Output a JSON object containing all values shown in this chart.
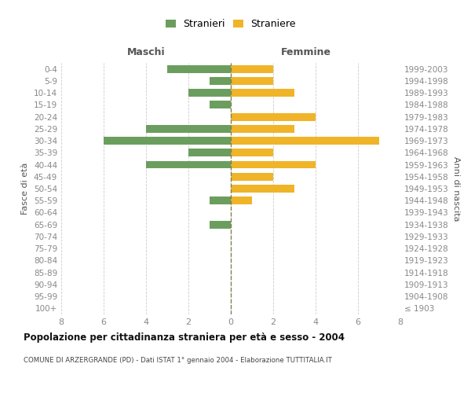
{
  "age_groups": [
    "100+",
    "95-99",
    "90-94",
    "85-89",
    "80-84",
    "75-79",
    "70-74",
    "65-69",
    "60-64",
    "55-59",
    "50-54",
    "45-49",
    "40-44",
    "35-39",
    "30-34",
    "25-29",
    "20-24",
    "15-19",
    "10-14",
    "5-9",
    "0-4"
  ],
  "birth_years": [
    "≤ 1903",
    "1904-1908",
    "1909-1913",
    "1914-1918",
    "1919-1923",
    "1924-1928",
    "1929-1933",
    "1934-1938",
    "1939-1943",
    "1944-1948",
    "1949-1953",
    "1954-1958",
    "1959-1963",
    "1964-1968",
    "1969-1973",
    "1974-1978",
    "1979-1983",
    "1984-1988",
    "1989-1993",
    "1994-1998",
    "1999-2003"
  ],
  "males": [
    0,
    0,
    0,
    0,
    0,
    0,
    0,
    1,
    0,
    1,
    0,
    0,
    4,
    2,
    6,
    4,
    0,
    1,
    2,
    1,
    3
  ],
  "females": [
    0,
    0,
    0,
    0,
    0,
    0,
    0,
    0,
    0,
    1,
    3,
    2,
    4,
    2,
    7,
    3,
    4,
    0,
    3,
    2,
    2
  ],
  "male_color": "#6b9e5e",
  "female_color": "#f0b429",
  "center_line_color": "#808050",
  "grid_color": "#cccccc",
  "title": "Popolazione per cittadinanza straniera per età e sesso - 2004",
  "subtitle": "COMUNE DI ARZERGRANDE (PD) - Dati ISTAT 1° gennaio 2004 - Elaborazione TUTTITALIA.IT",
  "label_maschi": "Maschi",
  "label_femmine": "Femmine",
  "ylabel_left": "Fasce di età",
  "ylabel_right": "Anni di nascita",
  "legend_male": "Stranieri",
  "legend_female": "Straniere",
  "xlim": 8,
  "background_color": "#ffffff",
  "tick_color": "#888888",
  "label_color": "#555555"
}
